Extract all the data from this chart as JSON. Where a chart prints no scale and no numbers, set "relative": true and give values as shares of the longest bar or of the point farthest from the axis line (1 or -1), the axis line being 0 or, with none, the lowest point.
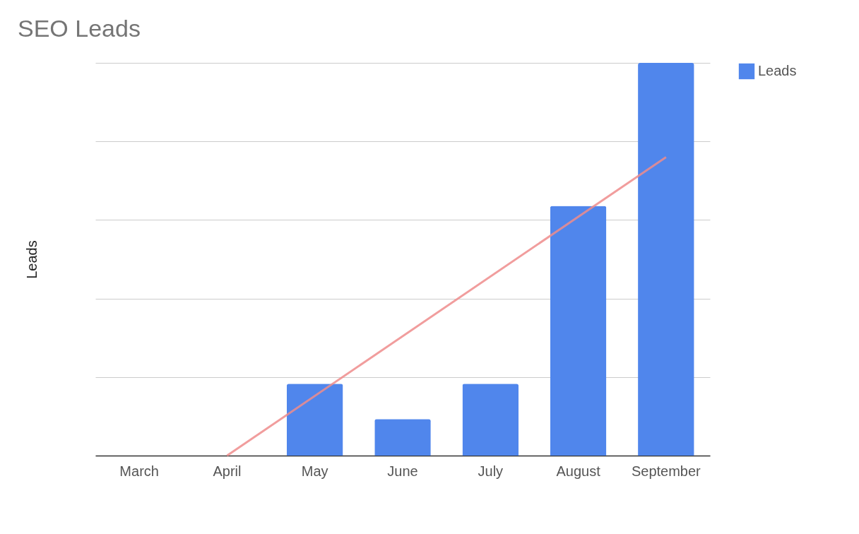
{
  "chart_data": {
    "type": "bar",
    "title": "SEO Leads",
    "ylabel": "Leads",
    "relative": true,
    "grid": "y",
    "legend": "top right",
    "categories": [
      "March",
      "April",
      "May",
      "June",
      "July",
      "August",
      "September"
    ],
    "series": [
      {
        "name": "Leads",
        "color": "#5086ec",
        "values": [
          0,
          0,
          0.183,
          0.093,
          0.183,
          0.636,
          1
        ]
      },
      {
        "type": "line",
        "color": "#ee8c8c",
        "x": [
          "April",
          "September"
        ],
        "values": [
          0,
          0.76
        ]
      }
    ]
  }
}
